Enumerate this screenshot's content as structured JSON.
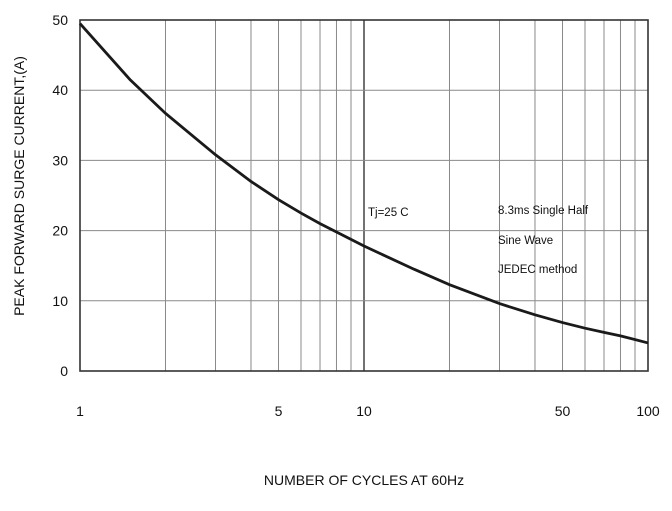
{
  "chart_data": {
    "type": "line",
    "title": "",
    "xlabel": "NUMBER OF CYCLES AT 60Hz",
    "ylabel": "PEAK FORWARD SURGE CURRENT,(A)",
    "x_scale": "log",
    "xlim": [
      1,
      100
    ],
    "ylim": [
      0,
      50
    ],
    "grid": true,
    "x_ticks": [
      "1",
      "5",
      "10",
      "50",
      "100"
    ],
    "y_ticks": [
      "0",
      "10",
      "20",
      "30",
      "40",
      "50"
    ],
    "series": [
      {
        "x": [
          1,
          1.5,
          2,
          3,
          4,
          5,
          6,
          7,
          8,
          10,
          15,
          20,
          30,
          40,
          50,
          60,
          70,
          80,
          100
        ],
        "y": [
          49.5,
          41.5,
          36.7,
          30.8,
          27.0,
          24.4,
          22.5,
          21.0,
          19.8,
          17.8,
          14.5,
          12.3,
          9.6,
          8.0,
          6.9,
          6.1,
          5.5,
          5.0,
          4.0
        ]
      }
    ],
    "annotations": [
      "Tj=25 C",
      "8.3ms Single Half",
      "Sine Wave",
      "JEDEC method"
    ]
  },
  "colors": {
    "curve": "#1a1a1a",
    "grid": "#8a8a8a",
    "frame": "#333333"
  }
}
